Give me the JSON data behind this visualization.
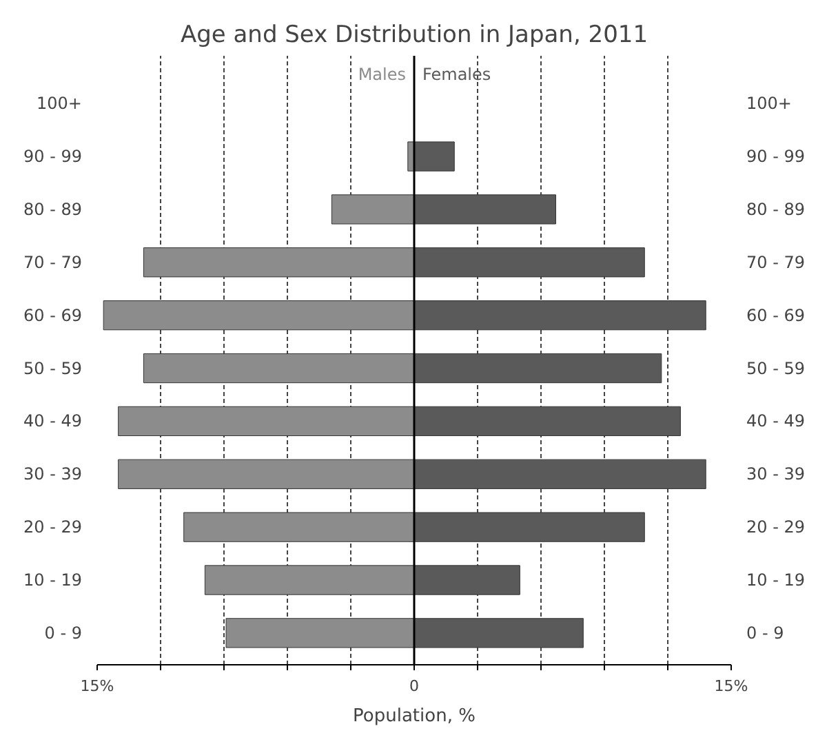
{
  "chart_data": {
    "type": "bar",
    "orientation": "horizontal",
    "title": "Age and Sex Distribution in Japan, 2011",
    "xlabel": "Population, %",
    "categories": [
      "100+",
      "90 - 99",
      "80 - 89",
      "70 - 79",
      "60 - 69",
      "50 - 59",
      "40 - 49",
      "30 - 39",
      "20 - 29",
      "10 - 19",
      "0 - 9"
    ],
    "y2_categories": [
      "100+",
      "90 - 99",
      "80 - 89",
      "70 - 79",
      "60 - 69",
      "50 - 59",
      "40 - 49",
      "30 - 39",
      "20 - 29",
      "10 - 19",
      "0 - 9"
    ],
    "series": [
      {
        "name": "Males",
        "color": "#8c8c8c",
        "values": [
          null,
          -0.3,
          -3.9,
          -12.8,
          -14.7,
          -12.8,
          -14.0,
          -14.0,
          -10.9,
          -9.9,
          -8.9
        ]
      },
      {
        "name": "Females",
        "color": "#5a5a5a",
        "values": [
          null,
          1.9,
          6.7,
          10.9,
          13.8,
          11.7,
          12.6,
          13.8,
          10.9,
          5.0,
          8.0
        ]
      }
    ],
    "xlim": [
      -15,
      15
    ],
    "xticks": [
      {
        "value": -15,
        "label": "15%"
      },
      {
        "value": -12,
        "label": null
      },
      {
        "value": -9,
        "label": null
      },
      {
        "value": -6,
        "label": null
      },
      {
        "value": -3,
        "label": null
      },
      0,
      {
        "value": 3,
        "label": null
      },
      {
        "value": 6,
        "label": null
      },
      {
        "value": 9,
        "label": null
      },
      {
        "value": 12,
        "label": null
      },
      {
        "value": 15,
        "label": "15%"
      }
    ],
    "ref_lines": [
      {
        "axis": "x",
        "value": 0,
        "label": null,
        "color": "#000000"
      }
    ],
    "grid": "x",
    "stacked": true
  }
}
